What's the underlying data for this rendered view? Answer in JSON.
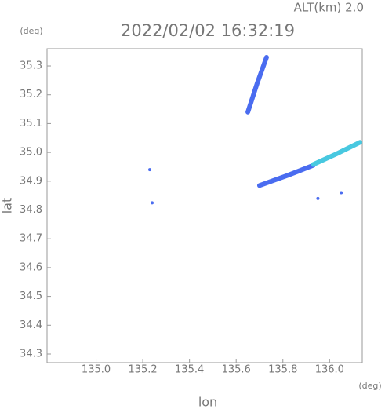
{
  "chart_data": {
    "type": "scatter",
    "title": "2022/02/02 16:32:19",
    "subtitle": "ALT(km) 2.0",
    "x_label": "lon",
    "y_label": "lat",
    "x_unit": "(deg)",
    "y_unit": "(deg)",
    "xlim": [
      134.79,
      136.14
    ],
    "ylim": [
      34.27,
      35.36
    ],
    "xticks": [
      {
        "value": 135,
        "label": "135.0"
      },
      135.2,
      135.4,
      135.6,
      135.8,
      {
        "value": 136,
        "label": "136.0"
      }
    ],
    "yticks": [
      34.3,
      34.4,
      34.5,
      34.6,
      34.7,
      34.8,
      34.9,
      {
        "value": 35,
        "label": "35.0"
      },
      35.1,
      35.2,
      35.3
    ],
    "series": [
      {
        "color": "#4a6cf0",
        "x": [
          135.65,
          135.69,
          135.73
        ],
        "values": [
          35.14,
          35.24,
          35.33
        ]
      },
      {
        "color": "#4a6cf0",
        "x": [
          135.7,
          135.82,
          135.93
        ],
        "values": [
          34.885,
          34.92,
          34.955
        ]
      },
      {
        "color": "#48c8e0",
        "x": [
          135.93,
          136.03,
          136.13
        ],
        "values": [
          34.958,
          34.995,
          35.035
        ]
      },
      {
        "color": "#4a6cf0",
        "x": [
          135.23
        ],
        "values": [
          34.94
        ]
      },
      {
        "color": "#4a6cf0",
        "x": [
          135.24
        ],
        "values": [
          34.825
        ]
      },
      {
        "color": "#4a6cf0",
        "x": [
          136.05
        ],
        "values": [
          34.86
        ]
      },
      {
        "color": "#4a6cf0",
        "x": [
          135.95
        ],
        "values": [
          34.84
        ]
      }
    ]
  }
}
